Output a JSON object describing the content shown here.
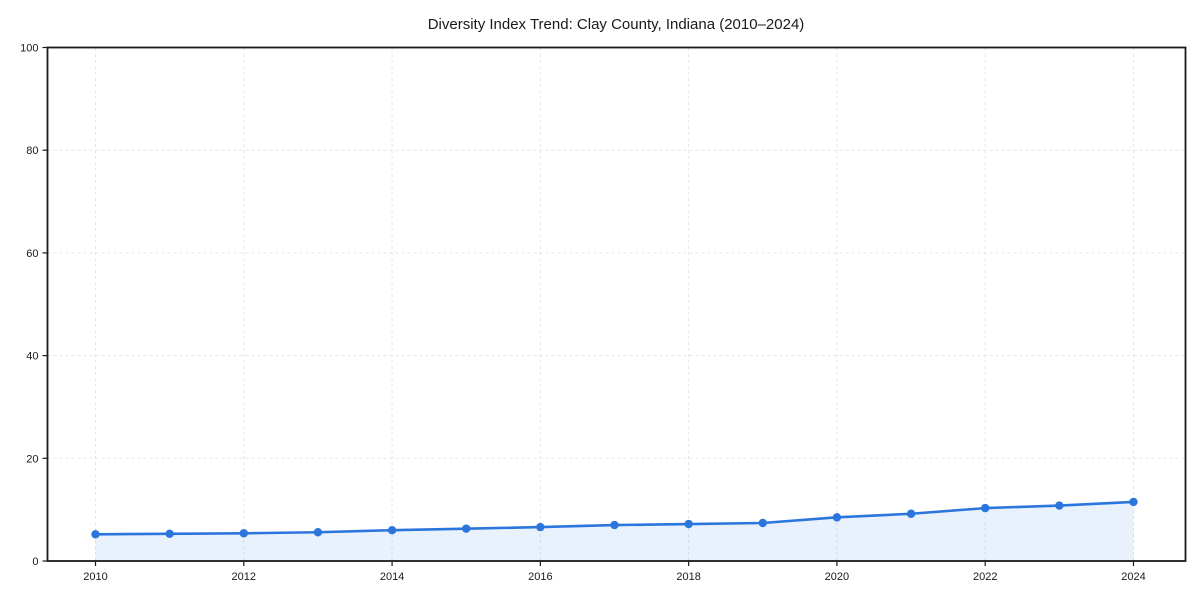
{
  "chart_data": {
    "type": "line",
    "title": "Diversity Index Trend: Clay County, Indiana (2010–2024)",
    "x": [
      2010,
      2011,
      2012,
      2013,
      2014,
      2015,
      2016,
      2017,
      2018,
      2019,
      2020,
      2021,
      2022,
      2023,
      2024
    ],
    "series": [
      {
        "name": "Diversity Index",
        "values": [
          5.2,
          5.3,
          5.4,
          5.6,
          6.0,
          6.3,
          6.6,
          7.0,
          7.2,
          7.4,
          8.5,
          9.2,
          10.3,
          10.8,
          11.5
        ]
      }
    ],
    "xlabel": "",
    "ylabel": "",
    "ylim": [
      0,
      100
    ],
    "yticks": [
      0,
      20,
      40,
      60,
      80,
      100
    ],
    "xticks": [
      2010,
      2012,
      2014,
      2016,
      2018,
      2020,
      2022,
      2024
    ],
    "grid": true,
    "grid_style": "dashed",
    "legend": false,
    "marker": "circle",
    "fill_under_line": true,
    "colors": {
      "line": "#2b76dd",
      "marker": "#2b76dd",
      "fill": "#2b76dd",
      "fill_opacity": 0.1,
      "grid": "#e5e5e5",
      "axis": "#1a1a1a",
      "text": "#1a1a1a",
      "background": "#ffffff"
    }
  }
}
